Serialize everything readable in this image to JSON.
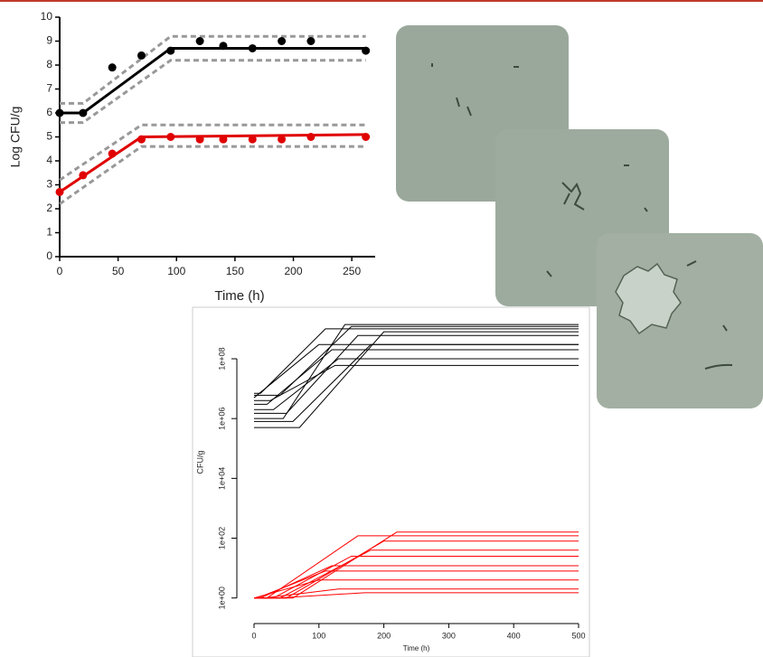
{
  "chart_data": [
    {
      "type": "scatter-fit",
      "xlabel": "Time (h)",
      "ylabel": "Log CFU/g",
      "xlim": [
        0,
        270
      ],
      "ylim": [
        0,
        10
      ],
      "xticks": [
        0,
        50,
        100,
        150,
        200,
        250
      ],
      "yticks": [
        0,
        1,
        2,
        3,
        4,
        5,
        6,
        7,
        8,
        9,
        10
      ],
      "x": [
        0,
        20,
        45,
        70,
        95,
        120,
        140,
        165,
        190,
        215,
        262
      ],
      "series": [
        {
          "color": "#000000",
          "values": [
            6.0,
            6.0,
            7.9,
            8.4,
            8.6,
            9.0,
            8.8,
            8.7,
            9.0,
            9.0,
            8.6
          ]
        },
        {
          "color": "#e00000",
          "values": [
            2.7,
            3.4,
            4.3,
            4.9,
            5.0,
            4.9,
            4.9,
            4.9,
            4.9,
            5.0,
            5.0
          ]
        }
      ],
      "band_color": "#999999",
      "fits": [
        {
          "color": "#000000",
          "x": [
            0,
            20,
            95,
            262
          ],
          "values": [
            6.0,
            6.0,
            8.7,
            8.7
          ],
          "upper": [
            6.4,
            6.4,
            9.2,
            9.2
          ],
          "lower": [
            5.6,
            5.6,
            8.2,
            8.2
          ]
        },
        {
          "color": "#e00000",
          "x": [
            0,
            70,
            262
          ],
          "values": [
            2.7,
            5.0,
            5.1
          ],
          "upper": [
            3.2,
            5.5,
            5.5
          ],
          "lower": [
            2.2,
            4.6,
            4.6
          ]
        }
      ]
    },
    {
      "type": "line",
      "log_y": true,
      "xlabel": "Time (h)",
      "ylabel": "CFU/g",
      "xlim": [
        -20,
        520
      ],
      "ylim": [
        0.3,
        4000000000
      ],
      "xticks": [
        0,
        100,
        200,
        300,
        400,
        500
      ],
      "yticks": [
        {
          "value": 1,
          "label": "1e+00"
        },
        {
          "value": 100,
          "label": "1e+02"
        },
        {
          "value": 10000,
          "label": "1e+04"
        },
        {
          "value": 1000000,
          "label": "1e+06"
        },
        {
          "value": 100000000,
          "label": "1e+08"
        }
      ],
      "series": [
        {
          "color": "#000000",
          "x": [
            0,
            40,
            150,
            500
          ],
          "values": [
            6000000,
            6000000,
            1200000000,
            1200000000
          ]
        },
        {
          "color": "#000000",
          "x": [
            0,
            20,
            120,
            500
          ],
          "values": [
            3000000,
            3000000,
            200000000,
            200000000
          ]
        },
        {
          "color": "#000000",
          "x": [
            0,
            60,
            180,
            500
          ],
          "values": [
            800000,
            800000,
            300000000,
            300000000
          ]
        },
        {
          "color": "#000000",
          "x": [
            0,
            10,
            110,
            500
          ],
          "values": [
            7000000,
            7000000,
            1000000000,
            1000000000
          ]
        },
        {
          "color": "#000000",
          "x": [
            0,
            30,
            130,
            500
          ],
          "values": [
            2000000,
            2000000,
            100000000,
            100000000
          ]
        },
        {
          "color": "#000000",
          "x": [
            0,
            50,
            160,
            500
          ],
          "values": [
            1500000,
            1500000,
            600000000,
            600000000
          ]
        },
        {
          "color": "#000000",
          "x": [
            0,
            0,
            100,
            500
          ],
          "values": [
            5000000,
            5000000,
            300000000,
            300000000
          ]
        },
        {
          "color": "#000000",
          "x": [
            0,
            45,
            140,
            500
          ],
          "values": [
            1000000,
            1000000,
            1400000000,
            1400000000
          ]
        },
        {
          "color": "#000000",
          "x": [
            0,
            25,
            125,
            500
          ],
          "values": [
            4000000,
            4000000,
            60000000,
            60000000
          ]
        },
        {
          "color": "#000000",
          "x": [
            0,
            70,
            200,
            500
          ],
          "values": [
            500000,
            500000,
            800000000,
            800000000
          ]
        },
        {
          "color": "#ff0000",
          "x": [
            0,
            20,
            160,
            500
          ],
          "values": [
            1,
            1,
            120,
            120
          ]
        },
        {
          "color": "#ff0000",
          "x": [
            0,
            40,
            180,
            500
          ],
          "values": [
            1,
            1,
            40,
            40
          ]
        },
        {
          "color": "#ff0000",
          "x": [
            0,
            10,
            120,
            500
          ],
          "values": [
            1,
            1,
            12,
            12
          ]
        },
        {
          "color": "#ff0000",
          "x": [
            0,
            0,
            100,
            500
          ],
          "values": [
            1,
            1,
            4,
            4
          ]
        },
        {
          "color": "#ff0000",
          "x": [
            0,
            30,
            150,
            500
          ],
          "values": [
            1,
            1,
            25,
            25
          ]
        },
        {
          "color": "#ff0000",
          "x": [
            0,
            50,
            200,
            500
          ],
          "values": [
            1,
            1,
            80,
            80
          ]
        },
        {
          "color": "#ff0000",
          "x": [
            0,
            15,
            130,
            500
          ],
          "values": [
            1,
            1,
            2,
            2
          ]
        },
        {
          "color": "#ff0000",
          "x": [
            0,
            60,
            220,
            500
          ],
          "values": [
            1,
            1,
            160,
            160
          ]
        },
        {
          "color": "#ff0000",
          "x": [
            0,
            5,
            110,
            500
          ],
          "values": [
            1,
            1,
            8,
            8
          ]
        },
        {
          "color": "#ff0000",
          "x": [
            0,
            35,
            170,
            500
          ],
          "values": [
            1,
            1,
            1.5,
            1.5
          ]
        }
      ]
    }
  ]
}
